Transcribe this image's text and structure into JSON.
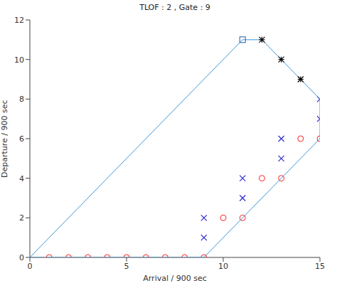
{
  "chart_data": {
    "type": "scatter",
    "title": "TLOF : 2 , Gate : 9",
    "x_label": "Arrival / 900 sec",
    "y_label": "Departure / 900 sec",
    "xlim": [
      0,
      15
    ],
    "ylim": [
      0,
      12
    ],
    "xticks": [
      0,
      5,
      10,
      15
    ],
    "yticks": [
      0,
      2,
      4,
      6,
      8,
      10,
      12
    ],
    "series": [
      {
        "type": "scatter",
        "marker": "circle",
        "color": "#ff2020",
        "x": [
          1,
          2,
          3,
          4,
          5,
          6,
          7,
          8,
          9,
          10,
          11,
          12,
          13,
          14,
          15
        ],
        "values": [
          0,
          0,
          0,
          0,
          0,
          0,
          0,
          0,
          0,
          2,
          2,
          4,
          4,
          6,
          6
        ]
      },
      {
        "type": "scatter",
        "marker": "x",
        "color": "#2a2acc",
        "x": [
          9,
          9,
          11,
          11,
          13,
          13,
          15,
          15
        ],
        "values": [
          1,
          2,
          3,
          4,
          5,
          6,
          7,
          8
        ]
      },
      {
        "type": "line",
        "color": "#3f95d4",
        "x": [
          0,
          11,
          12,
          13,
          14,
          15,
          15,
          9,
          0
        ],
        "values": [
          0,
          11,
          11,
          10,
          9,
          8,
          6,
          0,
          0
        ]
      },
      {
        "type": "scatter",
        "marker": "square",
        "color": "#1f5fa0",
        "x": [
          11
        ],
        "values": [
          11
        ]
      },
      {
        "type": "scatter",
        "marker": "asterisk",
        "color": "#000000",
        "x": [
          12,
          13,
          14
        ],
        "values": [
          11,
          10,
          9
        ]
      }
    ]
  }
}
